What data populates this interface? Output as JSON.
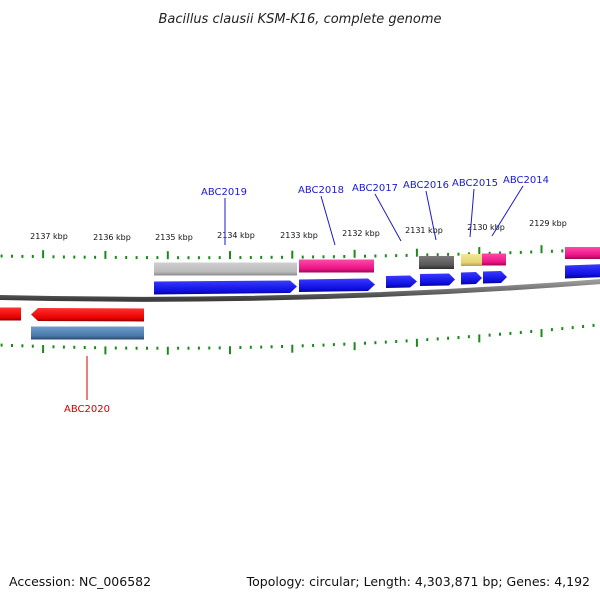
{
  "title": "Bacillus clausii KSM-K16, complete genome",
  "footer": {
    "accession": "Accession: NC_006582",
    "summary": "Topology: circular; Length: 4,303,871 bp; Genes: 4,192"
  },
  "scale_labels": [
    "2137 kbp",
    "2136 kbp",
    "2135 kbp",
    "2134 kbp",
    "2133 kbp",
    "2132 kbp",
    "2131 kbp",
    "2130 kbp",
    "2129 kbp"
  ],
  "gene_labels": {
    "abc2019": "ABC2019",
    "abc2018": "ABC2018",
    "abc2017": "ABC2017",
    "abc2016": "ABC2016",
    "abc2015": "ABC2015",
    "abc2014": "ABC2014",
    "abc2020": "ABC2020"
  },
  "colors": {
    "label_blue": "#1a1ad0",
    "label_red": "#d00000",
    "tick_green": "#1a8a1a",
    "backbone": "#777777",
    "cds_blue": "#1010e8",
    "cds_red": "#ee0000",
    "steel_blue": "#4f7fb0",
    "light_gray": "#bdbdbd",
    "dark_gray": "#5a5a5a",
    "magenta": "#ee1a8c",
    "khaki": "#e8d87a"
  }
}
